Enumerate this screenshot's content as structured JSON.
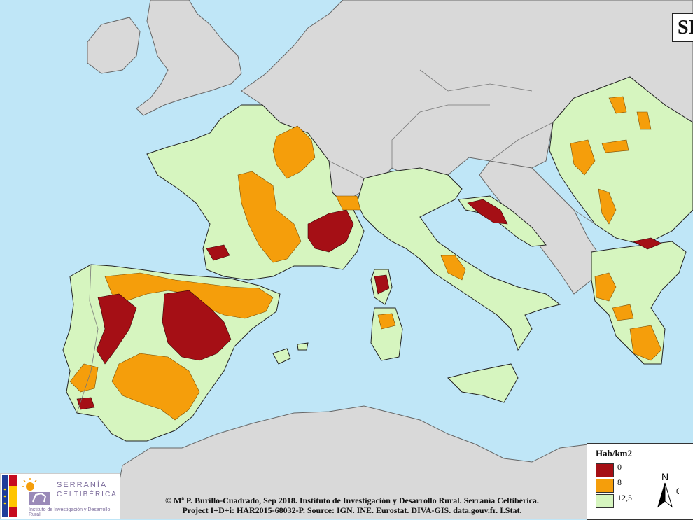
{
  "title_partial": "SI",
  "legend": {
    "title": "Hab/km2",
    "classes": [
      {
        "label": "0",
        "color": "#a50f15"
      },
      {
        "label": "8",
        "color": "#f59e0b"
      },
      {
        "label": "12,5",
        "color": "#d6f5bf"
      }
    ]
  },
  "colors": {
    "sea": "#bfe6f7",
    "land_other": "#d9d9d9",
    "land_study": "#d6f5bf",
    "low_density": "#f59e0b",
    "very_low_density": "#a50f15"
  },
  "north_label": "N",
  "scale_start": "0",
  "credits": {
    "line1": "© Mª P. Burillo-Cuadrado, Sep 2018. Instituto de Investigación y Desarrollo Rural. Serranía Celtibérica.",
    "line2": "Project I+D+i: HAR2015-68032-P. Source: IGN. INE. Eurostat. DIVA-GIS. data.gouv.fr. I.Stat."
  },
  "logo": {
    "name_line1": "SERRANÍA",
    "name_line2": "CELTIBÉRICA",
    "subtitle": "Instituto de Investigación y Desarrollo Rural"
  }
}
